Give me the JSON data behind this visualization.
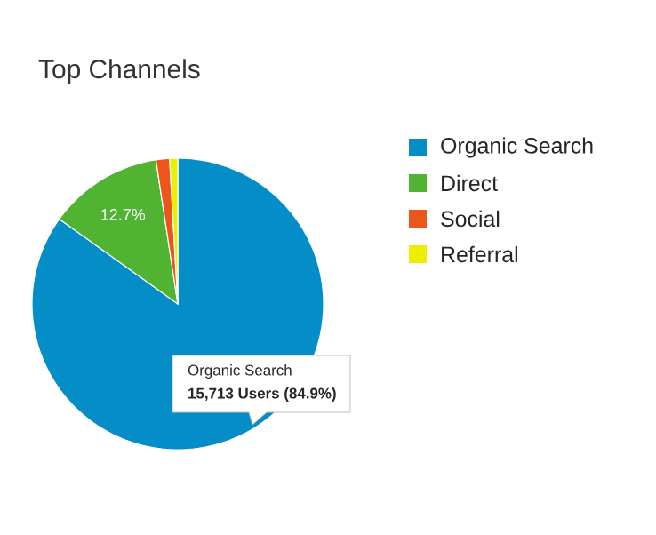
{
  "chart_data": {
    "type": "pie",
    "title": "Top Channels",
    "categories": [
      "Organic Search",
      "Direct",
      "Social",
      "Referral"
    ],
    "values": [
      84.9,
      12.7,
      1.5,
      0.9
    ],
    "colors": [
      "#058dc7",
      "#50b432",
      "#ed561b",
      "#edef00"
    ],
    "value_labels": [
      null,
      "12.7%",
      null,
      null
    ],
    "legend": "right",
    "annotations": [
      "Organic Search",
      "15,713 Users (84.9%)"
    ]
  }
}
